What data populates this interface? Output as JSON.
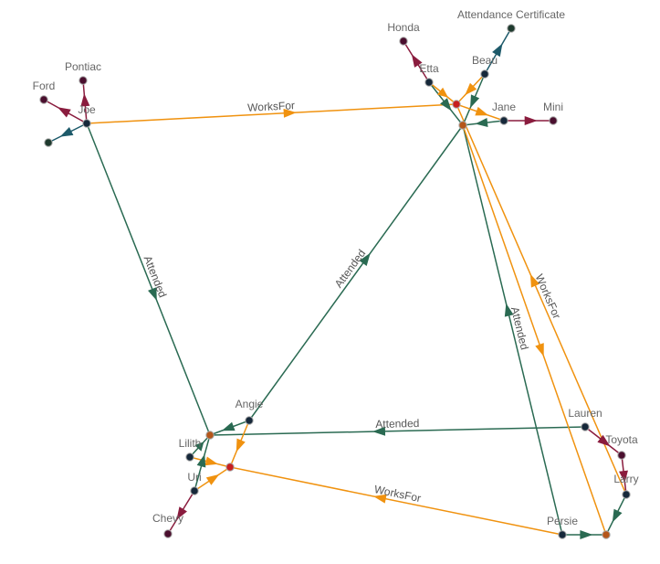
{
  "colors": {
    "attended": "#2a6a52",
    "worksfor": "#f0920f",
    "owns": "#8a1c3e",
    "cert": "#1d5a6a",
    "person": "#16283a",
    "company_red": "#c81e1e",
    "school_orange": "#b5561a",
    "car": "#4a0f2e",
    "cert_node": "#1e3a2e"
  },
  "nodes": [
    {
      "id": "joe",
      "label": "Joe",
      "kind": "person"
    },
    {
      "id": "ford",
      "label": "Ford",
      "kind": "car"
    },
    {
      "id": "pontiac",
      "label": "Pontiac",
      "kind": "car"
    },
    {
      "id": "joecert",
      "label": "",
      "kind": "cert_node"
    },
    {
      "id": "honda",
      "label": "Honda",
      "kind": "car"
    },
    {
      "id": "etta",
      "label": "Etta",
      "kind": "person"
    },
    {
      "id": "redtop",
      "label": "",
      "kind": "company_red"
    },
    {
      "id": "beau",
      "label": "Beau",
      "kind": "person"
    },
    {
      "id": "attcert",
      "label": "Attendance Certificate",
      "kind": "cert_node"
    },
    {
      "id": "orangetop",
      "label": "",
      "kind": "school_orange"
    },
    {
      "id": "jane",
      "label": "Jane",
      "kind": "person"
    },
    {
      "id": "mini",
      "label": "Mini",
      "kind": "car"
    },
    {
      "id": "angie",
      "label": "Angie",
      "kind": "person"
    },
    {
      "id": "lilithschool",
      "label": "",
      "kind": "school_orange"
    },
    {
      "id": "lilith",
      "label": "Lilith",
      "kind": "person"
    },
    {
      "id": "redbottom",
      "label": "",
      "kind": "company_red"
    },
    {
      "id": "uri",
      "label": "Uri",
      "kind": "person"
    },
    {
      "id": "chevy",
      "label": "Chevy",
      "kind": "car"
    },
    {
      "id": "lauren",
      "label": "Lauren",
      "kind": "person"
    },
    {
      "id": "toyota",
      "label": "Toyota",
      "kind": "car"
    },
    {
      "id": "larry",
      "label": "Larry",
      "kind": "person"
    },
    {
      "id": "persie",
      "label": "Persie",
      "kind": "person"
    },
    {
      "id": "orangebottom",
      "label": "",
      "kind": "school_orange"
    }
  ],
  "edges": [
    {
      "from": "joe",
      "to": "ford",
      "type": "owns",
      "label": ""
    },
    {
      "from": "joe",
      "to": "pontiac",
      "type": "owns",
      "label": ""
    },
    {
      "from": "joe",
      "to": "joecert",
      "type": "cert",
      "label": ""
    },
    {
      "from": "joe",
      "to": "redtop",
      "type": "worksfor",
      "label": "WorksFor"
    },
    {
      "from": "joe",
      "to": "lilithschool",
      "type": "attended",
      "label": "Attended"
    },
    {
      "from": "angie",
      "to": "orangetop",
      "type": "attended",
      "label": "Attended"
    },
    {
      "from": "lauren",
      "to": "lilithschool",
      "type": "attended",
      "label": "Attended"
    },
    {
      "from": "persie",
      "to": "orangetop",
      "type": "attended",
      "label": "Attended"
    },
    {
      "from": "persie",
      "to": "redbottom",
      "type": "worksfor",
      "label": "WorksFor"
    },
    {
      "from": "larry",
      "to": "redtop",
      "type": "worksfor",
      "label": "WorksFor"
    },
    {
      "from": "orangetop",
      "to": "orangebottom",
      "type": "worksfor",
      "label": ""
    },
    {
      "from": "etta",
      "to": "honda",
      "type": "owns",
      "label": ""
    },
    {
      "from": "etta",
      "to": "orangetop",
      "type": "attended",
      "label": ""
    },
    {
      "from": "etta",
      "to": "redtop",
      "type": "worksfor",
      "label": ""
    },
    {
      "from": "beau",
      "to": "attcert",
      "type": "cert",
      "label": ""
    },
    {
      "from": "beau",
      "to": "orangetop",
      "type": "attended",
      "label": ""
    },
    {
      "from": "beau",
      "to": "redtop",
      "type": "worksfor",
      "label": ""
    },
    {
      "from": "jane",
      "to": "orangetop",
      "type": "attended",
      "label": ""
    },
    {
      "from": "jane",
      "to": "mini",
      "type": "owns",
      "label": ""
    },
    {
      "from": "redtop",
      "to": "jane",
      "type": "worksfor",
      "label": ""
    },
    {
      "from": "angie",
      "to": "lilithschool",
      "type": "attended",
      "label": ""
    },
    {
      "from": "angie",
      "to": "redbottom",
      "type": "worksfor",
      "label": ""
    },
    {
      "from": "lilith",
      "to": "lilithschool",
      "type": "attended",
      "label": ""
    },
    {
      "from": "lilith",
      "to": "redbottom",
      "type": "worksfor",
      "label": ""
    },
    {
      "from": "uri",
      "to": "lilithschool",
      "type": "attended",
      "label": ""
    },
    {
      "from": "uri",
      "to": "redbottom",
      "type": "worksfor",
      "label": ""
    },
    {
      "from": "uri",
      "to": "chevy",
      "type": "owns",
      "label": ""
    },
    {
      "from": "lauren",
      "to": "toyota",
      "type": "owns",
      "label": ""
    },
    {
      "from": "toyota",
      "to": "larry",
      "type": "owns",
      "label": ""
    },
    {
      "from": "larry",
      "to": "orangebottom",
      "type": "attended",
      "label": ""
    },
    {
      "from": "persie",
      "to": "orangebottom",
      "type": "attended",
      "label": ""
    }
  ]
}
